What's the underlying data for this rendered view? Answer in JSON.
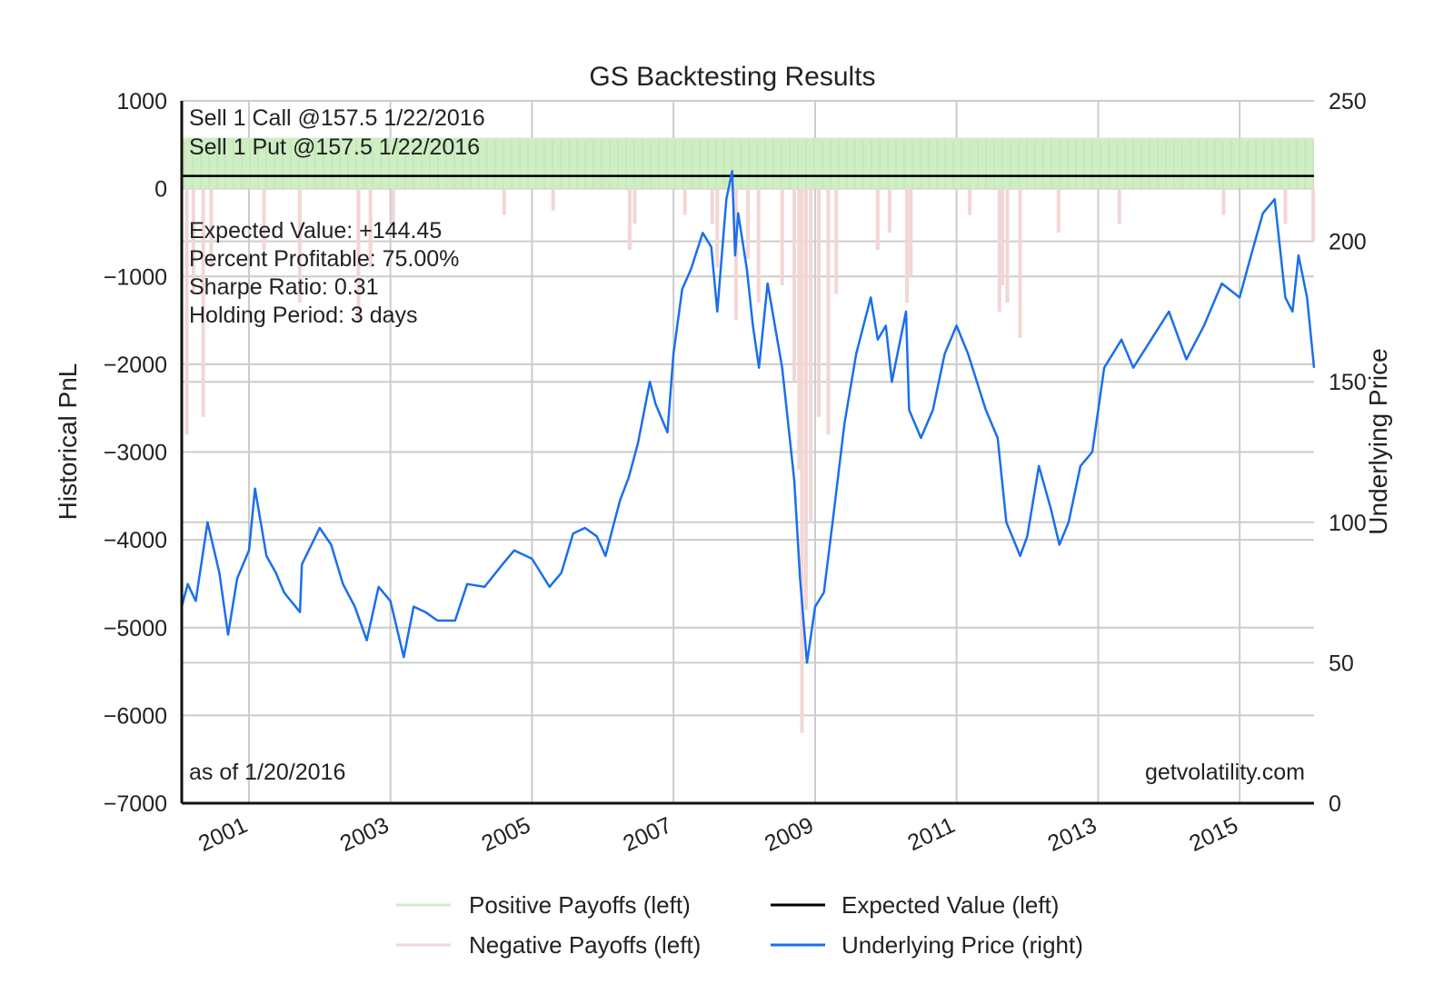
{
  "chart_data": {
    "type": "line",
    "title": "GS Backtesting Results",
    "ylabel": "Historical PnL",
    "y2label": "Underlying Price",
    "ylim": [
      -7000,
      1000
    ],
    "y2lim": [
      0,
      250
    ],
    "xlim": [
      "2000-01-20",
      "2016-01-20"
    ],
    "y_ticks": [
      1000,
      0,
      -1000,
      -2000,
      -3000,
      -4000,
      -5000,
      -6000,
      -7000
    ],
    "y2_ticks": [
      250,
      200,
      150,
      100,
      50,
      0
    ],
    "x_ticks": [
      "2001",
      "2003",
      "2005",
      "2007",
      "2009",
      "2011",
      "2013",
      "2015"
    ],
    "grid": true,
    "legend_placement": "bottom-center",
    "annotations": {
      "trade_lines": [
        "Sell 1 Call @157.5 1/22/2016",
        "Sell 1 Put @157.5 1/22/2016"
      ],
      "stats_lines": [
        "Expected Value: +144.45",
        "Percent Profitable: 75.00%",
        "Sharpe Ratio: 0.31",
        "Holding Period: 3 days"
      ],
      "as_of": "as of 1/20/2016",
      "source": "getvolatility.com"
    },
    "series": [
      {
        "name": "Positive Payoffs (left)",
        "axis": "left",
        "kind": "bars",
        "color": "#cfeec4",
        "typical_value": 580,
        "range": [
          380,
          600
        ]
      },
      {
        "name": "Negative Payoffs (left)",
        "axis": "left",
        "kind": "bars",
        "color": "#f2d6d6",
        "points": [
          [
            "2000-02-15",
            -2800
          ],
          [
            "2000-03-20",
            -1200
          ],
          [
            "2000-05-10",
            -2600
          ],
          [
            "2000-06-20",
            -900
          ],
          [
            "2001-03-20",
            -700
          ],
          [
            "2001-09-20",
            -1300
          ],
          [
            "2002-07-20",
            -1500
          ],
          [
            "2002-09-20",
            -900
          ],
          [
            "2003-01-15",
            -400
          ],
          [
            "2004-08-10",
            -300
          ],
          [
            "2005-04-20",
            -250
          ],
          [
            "2006-05-20",
            -700
          ],
          [
            "2006-06-15",
            -400
          ],
          [
            "2007-03-01",
            -300
          ],
          [
            "2007-07-20",
            -400
          ],
          [
            "2007-08-15",
            -900
          ],
          [
            "2007-11-20",
            -1500
          ],
          [
            "2008-01-20",
            -800
          ],
          [
            "2008-03-15",
            -1300
          ],
          [
            "2008-07-15",
            -1100
          ],
          [
            "2008-09-15",
            -2200
          ],
          [
            "2008-10-10",
            -3200
          ],
          [
            "2008-10-25",
            -6200
          ],
          [
            "2008-11-15",
            -4800
          ],
          [
            "2008-12-10",
            -3800
          ],
          [
            "2009-01-20",
            -2600
          ],
          [
            "2009-03-10",
            -2800
          ],
          [
            "2009-04-20",
            -1200
          ],
          [
            "2009-11-20",
            -700
          ],
          [
            "2010-01-20",
            -500
          ],
          [
            "2010-04-20",
            -1300
          ],
          [
            "2010-05-10",
            -1000
          ],
          [
            "2011-03-10",
            -300
          ],
          [
            "2011-08-10",
            -1400
          ],
          [
            "2011-08-25",
            -1100
          ],
          [
            "2011-09-20",
            -1300
          ],
          [
            "2011-11-25",
            -1700
          ],
          [
            "2012-06-10",
            -500
          ],
          [
            "2013-04-20",
            -400
          ],
          [
            "2014-10-10",
            -300
          ],
          [
            "2015-08-25",
            -400
          ],
          [
            "2016-01-15",
            -600
          ]
        ]
      },
      {
        "name": "Expected Value (left)",
        "axis": "left",
        "kind": "hline",
        "color": "#000000",
        "value": 144.45
      },
      {
        "name": "Underlying Price (right)",
        "axis": "right",
        "kind": "line",
        "color": "#1a6fea",
        "points": [
          [
            "2000-01-20",
            70
          ],
          [
            "2000-02-20",
            78
          ],
          [
            "2000-04-01",
            72
          ],
          [
            "2000-06-01",
            100
          ],
          [
            "2000-08-01",
            82
          ],
          [
            "2000-09-15",
            60
          ],
          [
            "2000-11-01",
            80
          ],
          [
            "2001-01-01",
            90
          ],
          [
            "2001-02-01",
            112
          ],
          [
            "2001-04-01",
            88
          ],
          [
            "2001-05-20",
            82
          ],
          [
            "2001-07-01",
            75
          ],
          [
            "2001-09-21",
            68
          ],
          [
            "2001-10-01",
            85
          ],
          [
            "2002-01-01",
            98
          ],
          [
            "2002-03-01",
            92
          ],
          [
            "2002-05-01",
            78
          ],
          [
            "2002-07-01",
            70
          ],
          [
            "2002-09-01",
            58
          ],
          [
            "2002-11-01",
            77
          ],
          [
            "2003-01-01",
            72
          ],
          [
            "2003-03-11",
            52
          ],
          [
            "2003-05-01",
            70
          ],
          [
            "2003-07-01",
            68
          ],
          [
            "2003-09-01",
            65
          ],
          [
            "2003-12-01",
            65
          ],
          [
            "2004-02-01",
            78
          ],
          [
            "2004-05-01",
            77
          ],
          [
            "2004-08-01",
            85
          ],
          [
            "2004-10-01",
            90
          ],
          [
            "2005-01-01",
            87
          ],
          [
            "2005-04-01",
            77
          ],
          [
            "2005-06-01",
            82
          ],
          [
            "2005-08-01",
            96
          ],
          [
            "2005-10-01",
            98
          ],
          [
            "2005-12-01",
            95
          ],
          [
            "2006-01-15",
            88
          ],
          [
            "2006-03-01",
            100
          ],
          [
            "2006-04-01",
            108
          ],
          [
            "2006-05-15",
            116
          ],
          [
            "2006-07-01",
            128
          ],
          [
            "2006-09-01",
            150
          ],
          [
            "2006-10-01",
            142
          ],
          [
            "2006-12-01",
            132
          ],
          [
            "2007-01-01",
            160
          ],
          [
            "2007-02-15",
            183
          ],
          [
            "2007-04-01",
            190
          ],
          [
            "2007-06-01",
            203
          ],
          [
            "2007-07-15",
            198
          ],
          [
            "2007-08-15",
            175
          ],
          [
            "2007-10-01",
            215
          ],
          [
            "2007-10-31",
            225
          ],
          [
            "2007-11-15",
            195
          ],
          [
            "2007-12-01",
            210
          ],
          [
            "2008-01-15",
            190
          ],
          [
            "2008-02-15",
            170
          ],
          [
            "2008-03-17",
            155
          ],
          [
            "2008-05-01",
            185
          ],
          [
            "2008-07-15",
            155
          ],
          [
            "2008-09-15",
            115
          ],
          [
            "2008-10-15",
            80
          ],
          [
            "2008-11-20",
            50
          ],
          [
            "2009-01-01",
            70
          ],
          [
            "2009-02-15",
            75
          ],
          [
            "2009-04-01",
            100
          ],
          [
            "2009-06-01",
            135
          ],
          [
            "2009-08-01",
            160
          ],
          [
            "2009-10-15",
            180
          ],
          [
            "2009-11-20",
            165
          ],
          [
            "2010-01-01",
            170
          ],
          [
            "2010-02-01",
            150
          ],
          [
            "2010-04-15",
            175
          ],
          [
            "2010-05-01",
            140
          ],
          [
            "2010-07-01",
            130
          ],
          [
            "2010-09-01",
            140
          ],
          [
            "2010-11-01",
            160
          ],
          [
            "2011-01-01",
            170
          ],
          [
            "2011-03-01",
            160
          ],
          [
            "2011-06-01",
            140
          ],
          [
            "2011-08-01",
            130
          ],
          [
            "2011-09-15",
            100
          ],
          [
            "2011-10-15",
            95
          ],
          [
            "2011-11-25",
            88
          ],
          [
            "2012-01-01",
            95
          ],
          [
            "2012-03-01",
            120
          ],
          [
            "2012-05-01",
            105
          ],
          [
            "2012-06-15",
            92
          ],
          [
            "2012-08-01",
            100
          ],
          [
            "2012-10-01",
            120
          ],
          [
            "2012-12-01",
            125
          ],
          [
            "2013-02-01",
            155
          ],
          [
            "2013-05-01",
            165
          ],
          [
            "2013-07-01",
            155
          ],
          [
            "2013-10-01",
            165
          ],
          [
            "2014-01-01",
            175
          ],
          [
            "2014-04-01",
            158
          ],
          [
            "2014-07-01",
            170
          ],
          [
            "2014-10-01",
            185
          ],
          [
            "2015-01-01",
            180
          ],
          [
            "2015-03-01",
            195
          ],
          [
            "2015-05-01",
            210
          ],
          [
            "2015-07-01",
            215
          ],
          [
            "2015-08-25",
            180
          ],
          [
            "2015-10-01",
            175
          ],
          [
            "2015-11-01",
            195
          ],
          [
            "2015-12-15",
            180
          ],
          [
            "2016-01-20",
            155
          ]
        ]
      }
    ]
  }
}
